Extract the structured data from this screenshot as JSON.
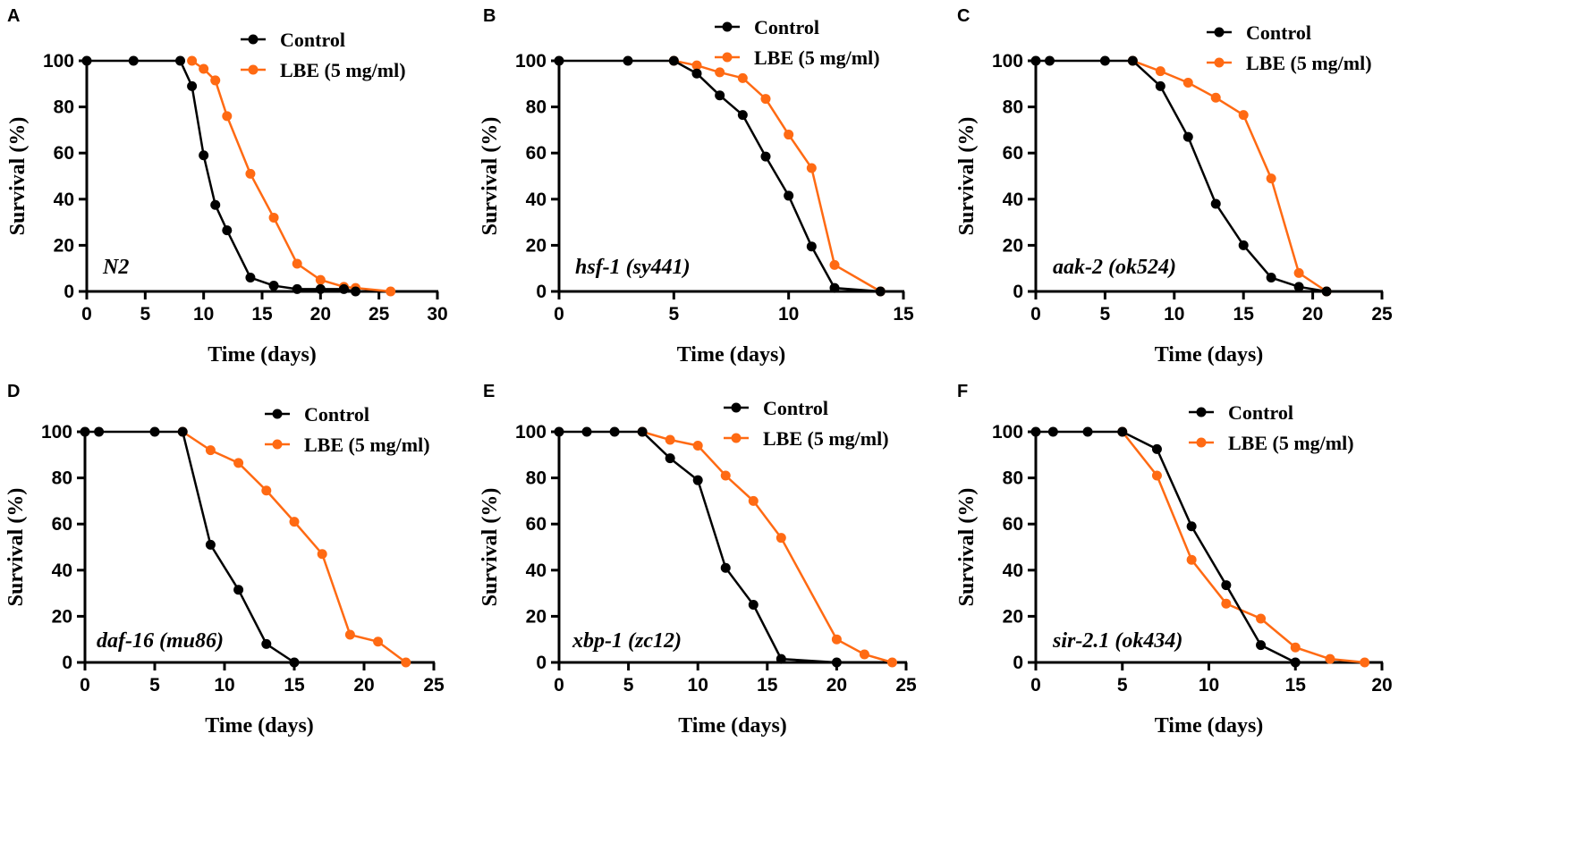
{
  "colors": {
    "control": "#000000",
    "lbe": "#ff6a13"
  },
  "chart_data": [
    {
      "type": "line",
      "panel": "A",
      "genotype": "N2",
      "genotype_italic": false,
      "xlabel": "Time (days)",
      "ylabel": "Survival (%)",
      "xlim": [
        0,
        30
      ],
      "xticks": [
        0,
        5,
        10,
        15,
        20,
        25,
        30
      ],
      "ylim": [
        0,
        100
      ],
      "yticks": [
        0,
        20,
        40,
        60,
        80,
        100
      ],
      "series": [
        {
          "name": "Control",
          "x": [
            0,
            4,
            8,
            9,
            10,
            11,
            12,
            14,
            16,
            18,
            20,
            22,
            23
          ],
          "y": [
            100,
            100,
            100,
            89,
            59,
            37.5,
            26.5,
            6,
            2.5,
            1,
            1,
            1,
            0
          ]
        },
        {
          "name": "LBE (5 mg/ml)",
          "x": [
            9,
            10,
            11,
            12,
            14,
            16,
            18,
            20,
            22,
            23,
            26
          ],
          "y": [
            100,
            96.5,
            91.5,
            76,
            51,
            32,
            12,
            5,
            2,
            1.5,
            0
          ]
        }
      ]
    },
    {
      "type": "line",
      "panel": "B",
      "genotype": "hsf-1 (sy441)",
      "genotype_italic": true,
      "xlabel": "Time (days)",
      "ylabel": "Survival (%)",
      "xlim": [
        0,
        15
      ],
      "xticks": [
        0,
        5,
        10,
        15
      ],
      "ylim": [
        0,
        100
      ],
      "yticks": [
        0,
        20,
        40,
        60,
        80,
        100
      ],
      "series": [
        {
          "name": "Control",
          "x": [
            0,
            3,
            5,
            6,
            7,
            8,
            9,
            10,
            11,
            12,
            14
          ],
          "y": [
            100,
            100,
            100,
            94.5,
            85,
            76.5,
            58.5,
            41.5,
            19.5,
            1.5,
            0
          ]
        },
        {
          "name": "LBE (5 mg/ml)",
          "x": [
            5,
            6,
            7,
            8,
            9,
            10,
            11,
            12,
            14
          ],
          "y": [
            100,
            98,
            95,
            92.5,
            83.5,
            68,
            53.5,
            11.5,
            0
          ]
        }
      ]
    },
    {
      "type": "line",
      "panel": "C",
      "genotype": "aak-2 (ok524)",
      "genotype_italic": true,
      "xlabel": "Time (days)",
      "ylabel": "Survival (%)",
      "xlim": [
        0,
        25
      ],
      "xticks": [
        0,
        5,
        10,
        15,
        20,
        25
      ],
      "ylim": [
        0,
        100
      ],
      "yticks": [
        0,
        20,
        40,
        60,
        80,
        100
      ],
      "series": [
        {
          "name": "Control",
          "x": [
            0,
            1,
            5,
            7,
            9,
            11,
            13,
            15,
            17,
            19,
            21
          ],
          "y": [
            100,
            100,
            100,
            100,
            89,
            67,
            38,
            20,
            6,
            2,
            0
          ]
        },
        {
          "name": "LBE (5 mg/ml)",
          "x": [
            7,
            9,
            11,
            13,
            15,
            17,
            19,
            21
          ],
          "y": [
            100,
            95.5,
            90.5,
            84,
            76.5,
            49,
            8,
            0
          ]
        }
      ]
    },
    {
      "type": "line",
      "panel": "D",
      "genotype": "daf-16 (mu86)",
      "genotype_italic": true,
      "xlabel": "Time (days)",
      "ylabel": "Survival (%)",
      "xlim": [
        0,
        25
      ],
      "xticks": [
        0,
        5,
        10,
        15,
        20,
        25
      ],
      "ylim": [
        0,
        100
      ],
      "yticks": [
        0,
        20,
        40,
        60,
        80,
        100
      ],
      "series": [
        {
          "name": "Control",
          "x": [
            0,
            1,
            5,
            7,
            9,
            11,
            13,
            15
          ],
          "y": [
            100,
            100,
            100,
            100,
            51,
            31.5,
            8,
            0
          ]
        },
        {
          "name": "LBE (5 mg/ml)",
          "x": [
            7,
            9,
            11,
            13,
            15,
            17,
            19,
            21,
            23
          ],
          "y": [
            100,
            92,
            86.5,
            74.5,
            61,
            47,
            12,
            9,
            0
          ]
        }
      ]
    },
    {
      "type": "line",
      "panel": "E",
      "genotype": "xbp-1 (zc12)",
      "genotype_italic": true,
      "xlabel": "Time (days)",
      "ylabel": "Survival (%)",
      "xlim": [
        0,
        25
      ],
      "xticks": [
        0,
        5,
        10,
        15,
        20,
        25
      ],
      "ylim": [
        0,
        100
      ],
      "yticks": [
        0,
        20,
        40,
        60,
        80,
        100
      ],
      "series": [
        {
          "name": "Control",
          "x": [
            0,
            2,
            4,
            6,
            8,
            10,
            12,
            14,
            16,
            20
          ],
          "y": [
            100,
            100,
            100,
            100,
            88.5,
            79,
            41,
            25,
            1.5,
            0
          ]
        },
        {
          "name": "LBE (5 mg/ml)",
          "x": [
            6,
            8,
            10,
            12,
            14,
            16,
            20,
            22,
            24
          ],
          "y": [
            100,
            96.5,
            94,
            81,
            70,
            54,
            10,
            3.5,
            0
          ]
        }
      ]
    },
    {
      "type": "line",
      "panel": "F",
      "genotype": "sir-2.1 (ok434)",
      "genotype_italic": true,
      "xlabel": "Time (days)",
      "ylabel": "Survival (%)",
      "xlim": [
        0,
        20
      ],
      "xticks": [
        0,
        5,
        10,
        15,
        20
      ],
      "ylim": [
        0,
        100
      ],
      "yticks": [
        0,
        20,
        40,
        60,
        80,
        100
      ],
      "series": [
        {
          "name": "Control",
          "x": [
            0,
            1,
            3,
            5,
            7,
            9,
            11,
            13,
            15
          ],
          "y": [
            100,
            100,
            100,
            100,
            92.5,
            59,
            33.5,
            7.5,
            0
          ]
        },
        {
          "name": "LBE (5 mg/ml)",
          "x": [
            5,
            7,
            9,
            11,
            13,
            15,
            17,
            19
          ],
          "y": [
            100,
            81,
            44.5,
            25.5,
            19,
            6.5,
            1.5,
            0
          ]
        }
      ]
    }
  ]
}
